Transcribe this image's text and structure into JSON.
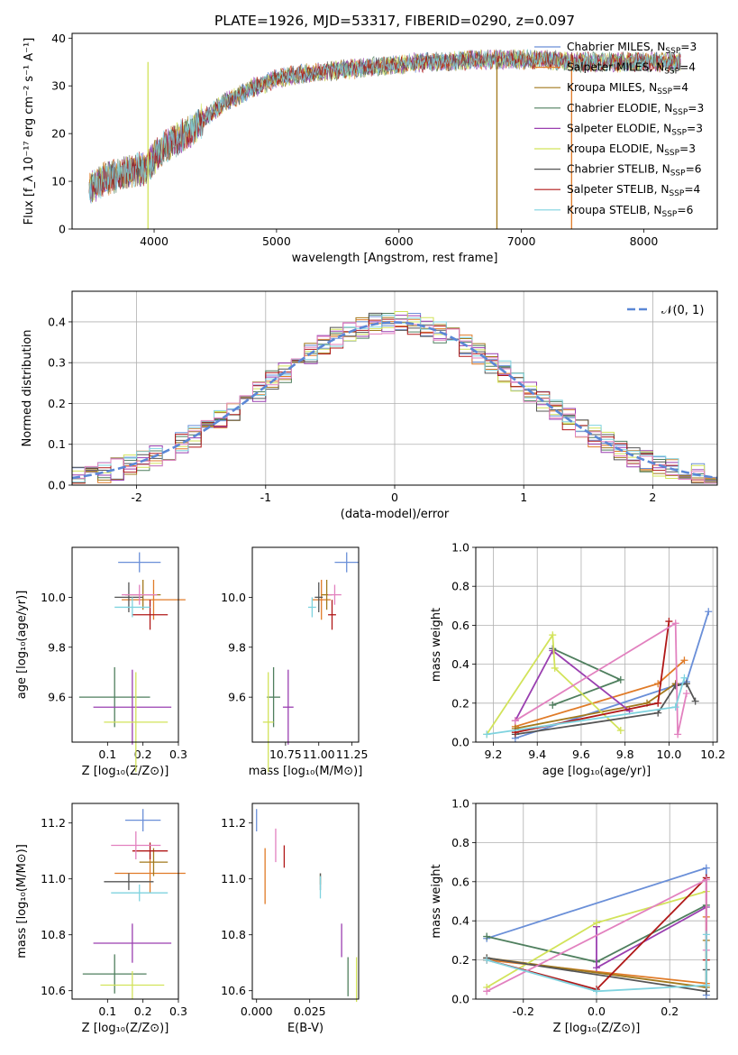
{
  "chart_data": [
    {
      "id": "spectrum",
      "type": "line",
      "title": "PLATE=1926, MJD=53317, FIBERID=0290, z=0.097",
      "xlabel": "wavelength [Angstrom, rest frame]",
      "ylabel": "Flux [f_λ 10⁻¹⁷ erg cm⁻² s⁻¹ A⁻¹]",
      "xlim": [
        3330,
        8600
      ],
      "ylim": [
        0,
        41
      ],
      "xticks": [
        4000,
        5000,
        6000,
        7000,
        8000
      ],
      "yticks": [
        0,
        10,
        20,
        30,
        40
      ],
      "continuum": [
        [
          3470,
          8.5
        ],
        [
          3600,
          10.5
        ],
        [
          3800,
          12
        ],
        [
          3950,
          13
        ],
        [
          4000,
          15
        ],
        [
          4100,
          17.5
        ],
        [
          4200,
          19
        ],
        [
          4300,
          20.5
        ],
        [
          4400,
          23
        ],
        [
          4500,
          25
        ],
        [
          4600,
          27
        ],
        [
          4700,
          28
        ],
        [
          4800,
          29.5
        ],
        [
          4900,
          30.5
        ],
        [
          5000,
          31.5
        ],
        [
          5200,
          32.5
        ],
        [
          5400,
          33
        ],
        [
          5600,
          33.5
        ],
        [
          5800,
          34
        ],
        [
          6000,
          34.5
        ],
        [
          6200,
          35
        ],
        [
          6400,
          35
        ],
        [
          6600,
          35.5
        ],
        [
          6800,
          35.5
        ],
        [
          7000,
          35.5
        ],
        [
          7200,
          35.5
        ],
        [
          7400,
          35
        ],
        [
          7600,
          35
        ],
        [
          7800,
          35
        ],
        [
          8000,
          35
        ],
        [
          8300,
          35
        ]
      ],
      "series": [
        {
          "name": "Chabrier MILES, N_SSP=3",
          "color": "#6a8fd8"
        },
        {
          "name": "Salpeter MILES, N_SSP=4",
          "color": "#e07b28"
        },
        {
          "name": "Kroupa MILES, N_SSP=4",
          "color": "#a2791c"
        },
        {
          "name": "Chabrier ELODIE, N_SSP=3",
          "color": "#4f7f5e"
        },
        {
          "name": "Salpeter ELODIE, N_SSP=3",
          "color": "#9a3fb0"
        },
        {
          "name": "Kroupa ELODIE, N_SSP=3",
          "color": "#d2e35a"
        },
        {
          "name": "Chabrier STELIB, N_SSP=6",
          "color": "#555555"
        },
        {
          "name": "Salpeter STELIB, N_SSP=4",
          "color": "#b01818"
        },
        {
          "name": "Kroupa STELIB, N_SSP=6",
          "color": "#7fd3df"
        }
      ],
      "legend_labels": [
        {
          "pre": "Chabrier MILES, N",
          "sub": "SSP",
          "post": "=3"
        },
        {
          "pre": "Salpeter MILES, N",
          "sub": "SSP",
          "post": "=4"
        },
        {
          "pre": "Kroupa MILES, N",
          "sub": "SSP",
          "post": "=4"
        },
        {
          "pre": "Chabrier ELODIE, N",
          "sub": "SSP",
          "post": "=3"
        },
        {
          "pre": "Salpeter ELODIE, N",
          "sub": "SSP",
          "post": "=3"
        },
        {
          "pre": "Kroupa ELODIE, N",
          "sub": "SSP",
          "post": "=3"
        },
        {
          "pre": "Chabrier STELIB, N",
          "sub": "SSP",
          "post": "=6"
        },
        {
          "pre": "Salpeter STELIB, N",
          "sub": "SSP",
          "post": "=4"
        },
        {
          "pre": "Kroupa STELIB, N",
          "sub": "SSP",
          "post": "=6"
        }
      ],
      "legend_position": "upper-right",
      "spikes": [
        {
          "x": 3950,
          "color": "#d2e35a"
        },
        {
          "x": 6800,
          "color": "#a2791c"
        },
        {
          "x": 7410,
          "color": "#e07b28"
        }
      ]
    },
    {
      "id": "residuals",
      "type": "histogram",
      "xlabel": "(data-model)/error",
      "ylabel": "Normed distribution",
      "xlim": [
        -2.5,
        2.5
      ],
      "ylim": [
        0,
        0.475
      ],
      "xticks": [
        -2,
        -1,
        0,
        1,
        2
      ],
      "yticks": [
        0.0,
        0.1,
        0.2,
        0.3,
        0.4
      ],
      "grid": true,
      "bin_width": 0.1,
      "reference_label": "𝒩(0, 1)",
      "reference_color": "#5b87d6",
      "legend_position": "upper-right"
    },
    {
      "id": "age_vs_Z",
      "type": "errorbar",
      "xlabel": "Z [log₁₀(Z/Z⊙)]",
      "ylabel": "age  [log₁₀(age/yr)]",
      "xlim": [
        0.0,
        0.3
      ],
      "ylim": [
        9.42,
        10.2
      ],
      "xticks": [
        0.1,
        0.2,
        0.3
      ],
      "yticks": [
        9.6,
        9.8,
        10.0
      ],
      "points": [
        {
          "color": "#6a8fd8",
          "x": 0.19,
          "xerr": 0.06,
          "y": 10.14,
          "yerr": 0.04
        },
        {
          "color": "#e07b28",
          "x": 0.23,
          "xerr": 0.09,
          "y": 9.99,
          "yerr": 0.08
        },
        {
          "color": "#a2791c",
          "x": 0.2,
          "xerr": 0.05,
          "y": 10.01,
          "yerr": 0.06
        },
        {
          "color": "#4f7f5e",
          "x": 0.12,
          "xerr": 0.1,
          "y": 9.6,
          "yerr": 0.12
        },
        {
          "color": "#9a3fb0",
          "x": 0.17,
          "xerr": 0.11,
          "y": 9.56,
          "yerr": 0.15
        },
        {
          "color": "#d2e35a",
          "x": 0.18,
          "xerr": 0.09,
          "y": 9.5,
          "yerr": 0.2
        },
        {
          "color": "#555555",
          "x": 0.16,
          "xerr": 0.04,
          "y": 10.0,
          "yerr": 0.06
        },
        {
          "color": "#b01818",
          "x": 0.22,
          "xerr": 0.05,
          "y": 9.93,
          "yerr": 0.06
        },
        {
          "color": "#e281bf",
          "x": 0.19,
          "xerr": 0.05,
          "y": 10.01,
          "yerr": 0.04
        },
        {
          "color": "#7fd3df",
          "x": 0.17,
          "xerr": 0.05,
          "y": 9.96,
          "yerr": 0.04
        }
      ]
    },
    {
      "id": "age_vs_mass",
      "type": "errorbar",
      "xlabel": "mass [log₁₀(M/M⊙)]",
      "xlim": [
        10.5,
        11.3
      ],
      "ylim": [
        9.42,
        10.2
      ],
      "xticks": [
        10.75,
        11.0,
        11.25
      ],
      "yticks": [
        9.6,
        9.8,
        10.0
      ],
      "points": [
        {
          "color": "#6a8fd8",
          "x": 11.21,
          "xerr": 0.09,
          "y": 10.14,
          "yerr": 0.04
        },
        {
          "color": "#e07b28",
          "x": 11.02,
          "xerr": 0.07,
          "y": 9.99,
          "yerr": 0.08
        },
        {
          "color": "#a2791c",
          "x": 11.06,
          "xerr": 0.04,
          "y": 10.01,
          "yerr": 0.06
        },
        {
          "color": "#4f7f5e",
          "x": 10.66,
          "xerr": 0.05,
          "y": 9.6,
          "yerr": 0.12
        },
        {
          "color": "#9a3fb0",
          "x": 10.77,
          "xerr": 0.04,
          "y": 9.56,
          "yerr": 0.15
        },
        {
          "color": "#d2e35a",
          "x": 10.62,
          "xerr": 0.04,
          "y": 9.5,
          "yerr": 0.2
        },
        {
          "color": "#555555",
          "x": 11.0,
          "xerr": 0.03,
          "y": 10.0,
          "yerr": 0.06
        },
        {
          "color": "#b01818",
          "x": 11.1,
          "xerr": 0.03,
          "y": 9.93,
          "yerr": 0.06
        },
        {
          "color": "#e281bf",
          "x": 11.12,
          "xerr": 0.05,
          "y": 10.01,
          "yerr": 0.04
        },
        {
          "color": "#7fd3df",
          "x": 10.95,
          "xerr": 0.03,
          "y": 9.96,
          "yerr": 0.04
        }
      ]
    },
    {
      "id": "weights_vs_age",
      "type": "line",
      "xlabel": "age  [log₁₀(age/yr)]",
      "ylabel": "mass weight",
      "xlim": [
        9.12,
        10.22
      ],
      "ylim": [
        0,
        1.0
      ],
      "xticks": [
        9.2,
        9.4,
        9.6,
        9.8,
        10.0,
        10.2
      ],
      "yticks": [
        0.0,
        0.2,
        0.4,
        0.6,
        0.8,
        1.0
      ],
      "grid": true,
      "series": [
        {
          "color": "#6a8fd8",
          "points": [
            [
              9.3,
              0.02
            ],
            [
              10.08,
              0.31
            ],
            [
              10.18,
              0.67
            ]
          ]
        },
        {
          "color": "#e07b28",
          "points": [
            [
              9.3,
              0.08
            ],
            [
              9.95,
              0.3
            ],
            [
              10.07,
              0.42
            ]
          ]
        },
        {
          "color": "#a2791c",
          "points": [
            [
              9.3,
              0.07
            ],
            [
              9.9,
              0.2
            ],
            [
              10.03,
              0.3
            ]
          ]
        },
        {
          "color": "#4f7f5e",
          "points": [
            [
              9.47,
              0.19
            ],
            [
              9.78,
              0.32
            ],
            [
              9.47,
              0.48
            ]
          ]
        },
        {
          "color": "#9a3fb0",
          "points": [
            [
              9.3,
              0.11
            ],
            [
              9.47,
              0.47
            ],
            [
              9.82,
              0.16
            ]
          ]
        },
        {
          "color": "#d2e35a",
          "points": [
            [
              9.17,
              0.04
            ],
            [
              9.47,
              0.55
            ],
            [
              9.48,
              0.38
            ],
            [
              9.78,
              0.06
            ]
          ]
        },
        {
          "color": "#555555",
          "points": [
            [
              9.3,
              0.04
            ],
            [
              9.95,
              0.15
            ],
            [
              10.03,
              0.29
            ],
            [
              10.08,
              0.3
            ],
            [
              10.12,
              0.21
            ]
          ]
        },
        {
          "color": "#b01818",
          "points": [
            [
              9.3,
              0.05
            ],
            [
              9.95,
              0.2
            ],
            [
              10.0,
              0.62
            ]
          ]
        },
        {
          "color": "#e281bf",
          "points": [
            [
              9.3,
              0.11
            ],
            [
              10.03,
              0.61
            ],
            [
              10.04,
              0.04
            ],
            [
              10.08,
              0.25
            ]
          ]
        },
        {
          "color": "#7fd3df",
          "points": [
            [
              9.17,
              0.04
            ],
            [
              10.03,
              0.18
            ],
            [
              10.07,
              0.33
            ]
          ]
        }
      ]
    },
    {
      "id": "mass_vs_Z",
      "type": "errorbar",
      "xlabel": "Z [log₁₀(Z/Z⊙)]",
      "ylabel": "mass [log₁₀(M/M⊙)]",
      "xlim": [
        0.0,
        0.3
      ],
      "ylim": [
        10.57,
        11.27
      ],
      "xticks": [
        0.1,
        0.2,
        0.3
      ],
      "yticks": [
        10.6,
        10.8,
        11.0,
        11.2
      ],
      "points": [
        {
          "color": "#6a8fd8",
          "x": 0.2,
          "xerr": 0.05,
          "y": 11.21,
          "yerr": 0.04
        },
        {
          "color": "#e07b28",
          "x": 0.22,
          "xerr": 0.1,
          "y": 11.02,
          "yerr": 0.07
        },
        {
          "color": "#a2791c",
          "x": 0.23,
          "xerr": 0.04,
          "y": 11.06,
          "yerr": 0.05
        },
        {
          "color": "#4f7f5e",
          "x": 0.12,
          "xerr": 0.09,
          "y": 10.66,
          "yerr": 0.07
        },
        {
          "color": "#9a3fb0",
          "x": 0.17,
          "xerr": 0.11,
          "y": 10.77,
          "yerr": 0.07
        },
        {
          "color": "#d2e35a",
          "x": 0.17,
          "xerr": 0.09,
          "y": 10.62,
          "yerr": 0.05
        },
        {
          "color": "#555555",
          "x": 0.16,
          "xerr": 0.07,
          "y": 10.99,
          "yerr": 0.03
        },
        {
          "color": "#b01818",
          "x": 0.22,
          "xerr": 0.05,
          "y": 11.1,
          "yerr": 0.03
        },
        {
          "color": "#e281bf",
          "x": 0.18,
          "xerr": 0.07,
          "y": 11.12,
          "yerr": 0.05
        },
        {
          "color": "#7fd3df",
          "x": 0.19,
          "xerr": 0.08,
          "y": 10.95,
          "yerr": 0.03
        }
      ]
    },
    {
      "id": "mass_vs_ebv",
      "type": "errorbar",
      "xlabel": "E(B-V)",
      "xlim": [
        -0.002,
        0.048
      ],
      "ylim": [
        10.57,
        11.27
      ],
      "xticks": [
        0.0,
        0.025
      ],
      "xtick_labels": [
        "0.000",
        "0.025"
      ],
      "yticks": [
        10.6,
        10.8,
        11.0,
        11.2
      ],
      "points": [
        {
          "color": "#6a8fd8",
          "x": 0.0,
          "xerr": 0,
          "y": 11.21,
          "yerr": 0.04
        },
        {
          "color": "#e07b28",
          "x": 0.004,
          "xerr": 0,
          "y": 11.01,
          "yerr": 0.1
        },
        {
          "color": "#a2791c",
          "x": 0.03,
          "xerr": 0,
          "y": 11.0,
          "yerr": 0.02
        },
        {
          "color": "#4f7f5e",
          "x": 0.043,
          "xerr": 0,
          "y": 10.65,
          "yerr": 0.07
        },
        {
          "color": "#9a3fb0",
          "x": 0.04,
          "xerr": 0,
          "y": 10.78,
          "yerr": 0.06
        },
        {
          "color": "#d2e35a",
          "x": 0.047,
          "xerr": 0,
          "y": 10.64,
          "yerr": 0.08
        },
        {
          "color": "#555555",
          "x": 0.03,
          "xerr": 0,
          "y": 10.99,
          "yerr": 0.03
        },
        {
          "color": "#b01818",
          "x": 0.013,
          "xerr": 0,
          "y": 11.08,
          "yerr": 0.04
        },
        {
          "color": "#e281bf",
          "x": 0.009,
          "xerr": 0,
          "y": 11.12,
          "yerr": 0.06
        },
        {
          "color": "#7fd3df",
          "x": 0.03,
          "xerr": 0,
          "y": 10.97,
          "yerr": 0.04
        }
      ]
    },
    {
      "id": "weights_vs_Z",
      "type": "line",
      "xlabel": "Z [log₁₀(Z/Z⊙)]",
      "ylabel": "mass weight",
      "xlim": [
        -0.33,
        0.33
      ],
      "ylim": [
        0,
        1.0
      ],
      "xticks": [
        -0.2,
        0.0,
        0.2
      ],
      "yticks": [
        0.0,
        0.2,
        0.4,
        0.6,
        0.8,
        1.0
      ],
      "grid": true,
      "series": [
        {
          "color": "#6a8fd8",
          "points": [
            [
              -0.3,
              0.31
            ],
            [
              0.3,
              0.67
            ],
            [
              0.3,
              0.02
            ]
          ]
        },
        {
          "color": "#e07b28",
          "points": [
            [
              -0.3,
              0.2
            ],
            [
              0.3,
              0.08
            ],
            [
              0.3,
              0.42
            ]
          ]
        },
        {
          "color": "#a2791c",
          "points": [
            [
              -0.3,
              0.21
            ],
            [
              0.3,
              0.06
            ],
            [
              0.3,
              0.3
            ]
          ]
        },
        {
          "color": "#4f7f5e",
          "points": [
            [
              -0.3,
              0.32
            ],
            [
              0.0,
              0.19
            ],
            [
              0.3,
              0.48
            ]
          ]
        },
        {
          "color": "#9a3fb0",
          "points": [
            [
              0.0,
              0.37
            ],
            [
              0.0,
              0.16
            ],
            [
              0.3,
              0.47
            ]
          ]
        },
        {
          "color": "#d2e35a",
          "points": [
            [
              -0.3,
              0.06
            ],
            [
              0.0,
              0.39
            ],
            [
              0.3,
              0.55
            ]
          ]
        },
        {
          "color": "#555555",
          "points": [
            [
              -0.3,
              0.21
            ],
            [
              0.3,
              0.04
            ],
            [
              0.3,
              0.15
            ]
          ]
        },
        {
          "color": "#b01818",
          "points": [
            [
              -0.3,
              0.2
            ],
            [
              0.0,
              0.05
            ],
            [
              0.3,
              0.62
            ],
            [
              0.3,
              0.2
            ]
          ]
        },
        {
          "color": "#e281bf",
          "points": [
            [
              -0.3,
              0.04
            ],
            [
              0.3,
              0.61
            ],
            [
              0.3,
              0.25
            ]
          ]
        },
        {
          "color": "#7fd3df",
          "points": [
            [
              -0.3,
              0.2
            ],
            [
              0.0,
              0.04
            ],
            [
              0.3,
              0.07
            ],
            [
              0.3,
              0.33
            ]
          ]
        }
      ]
    }
  ]
}
